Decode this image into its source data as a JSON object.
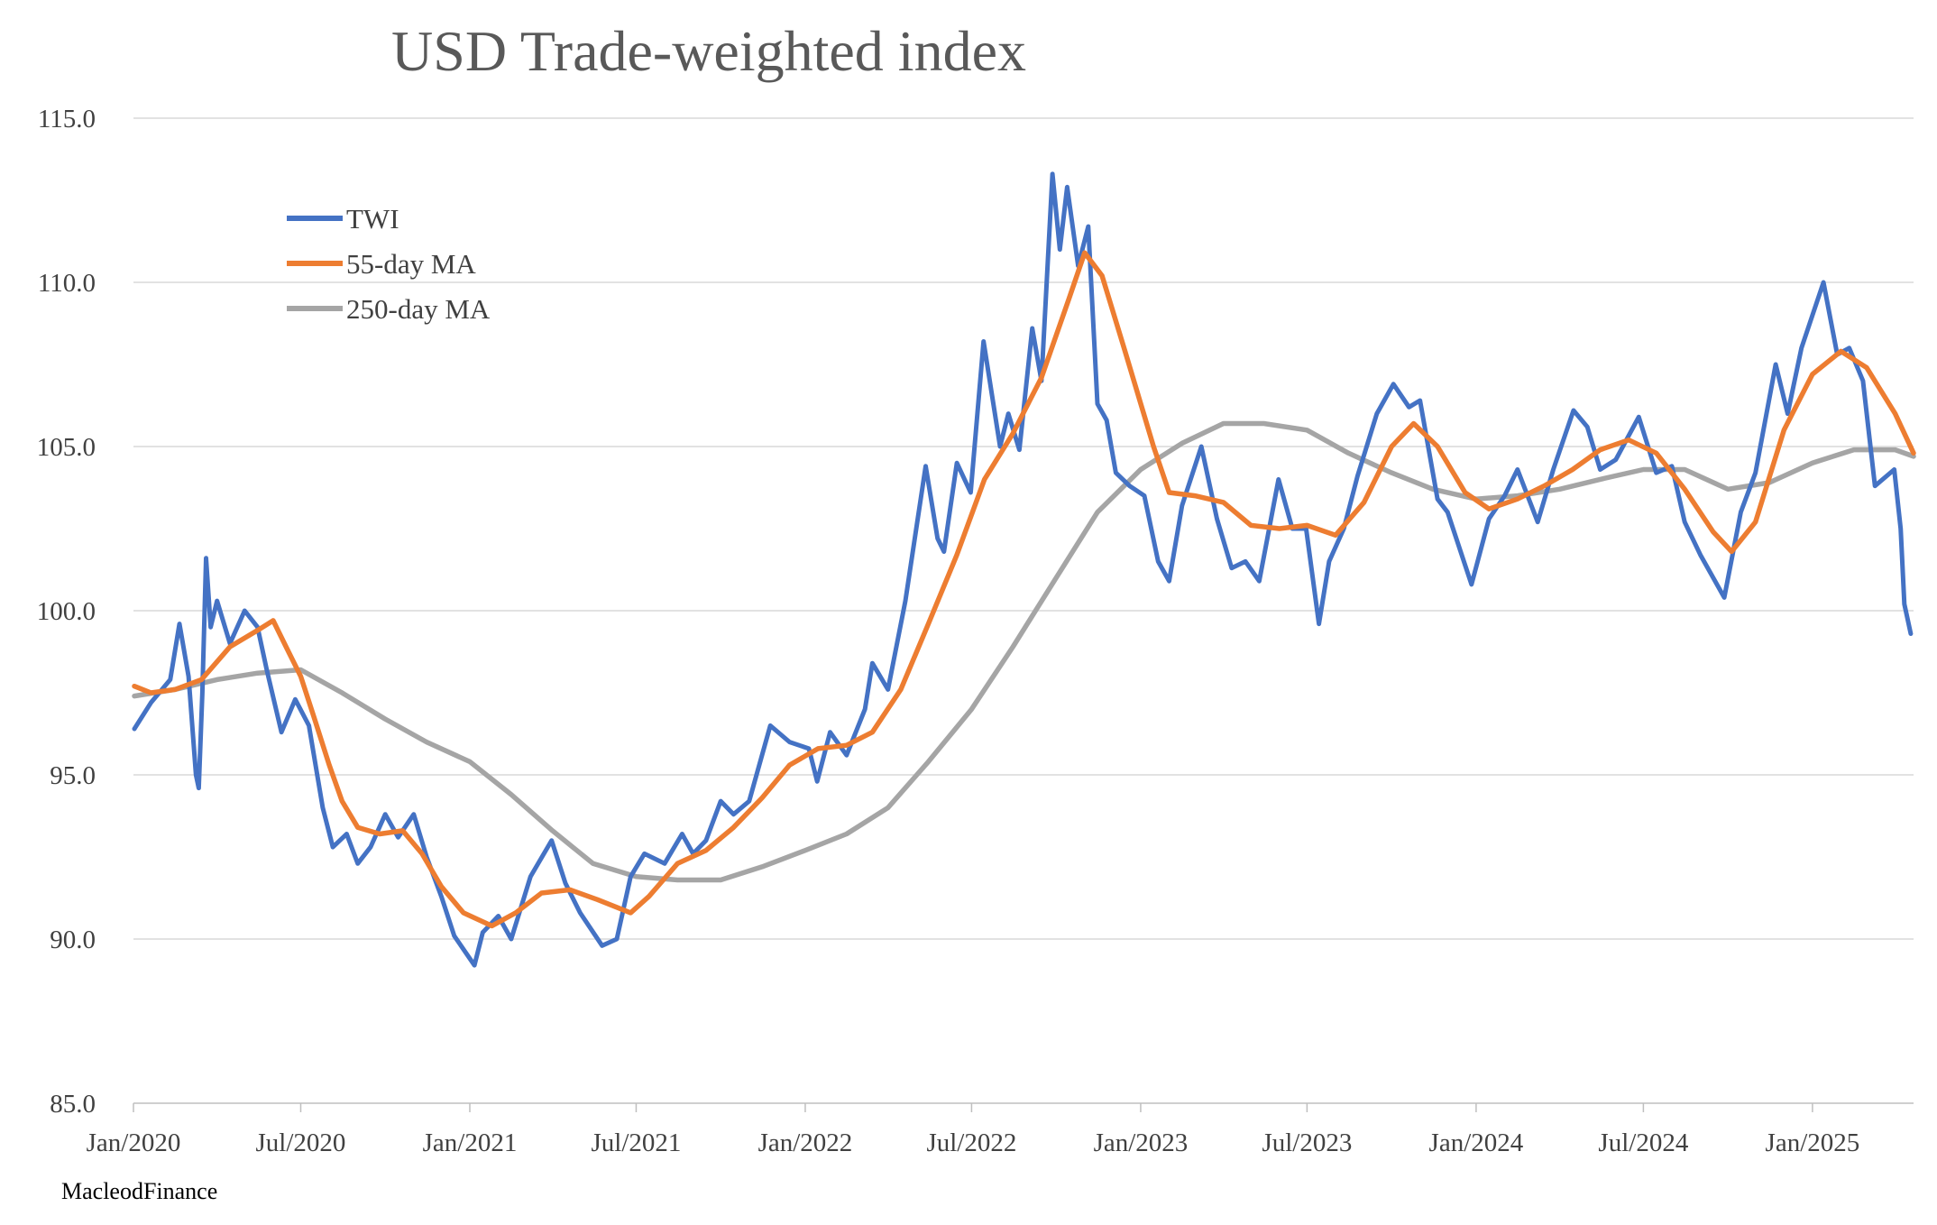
{
  "source_label": "MacleodFinance",
  "chart_data": {
    "type": "line",
    "title": "USD Trade-weighted index",
    "xlabel": "",
    "ylabel": "",
    "x_range": [
      "2020-01-01",
      "2025-04-21"
    ],
    "ylim": [
      85.0,
      115.0
    ],
    "y_ticks": [
      "85.0",
      "90.0",
      "95.0",
      "100.0",
      "105.0",
      "110.0",
      "115.0"
    ],
    "x_ticks": [
      {
        "label": "Jan/2020",
        "date": "2020-01-01"
      },
      {
        "label": "Jul/2020",
        "date": "2020-07-01"
      },
      {
        "label": "Jan/2021",
        "date": "2021-01-01"
      },
      {
        "label": "Jul/2021",
        "date": "2021-07-01"
      },
      {
        "label": "Jan/2022",
        "date": "2022-01-01"
      },
      {
        "label": "Jul/2022",
        "date": "2022-07-01"
      },
      {
        "label": "Jan/2023",
        "date": "2023-01-01"
      },
      {
        "label": "Jul/2023",
        "date": "2023-07-01"
      },
      {
        "label": "Jan/2024",
        "date": "2024-01-01"
      },
      {
        "label": "Jul/2024",
        "date": "2024-07-01"
      },
      {
        "label": "Jan/2025",
        "date": "2025-01-01"
      }
    ],
    "grid": true,
    "legend_position": "top-left",
    "series": [
      {
        "name": "TWI",
        "color": "#4472C4",
        "points": [
          [
            "2020-01-02",
            96.4
          ],
          [
            "2020-01-20",
            97.2
          ],
          [
            "2020-02-10",
            97.9
          ],
          [
            "2020-02-20",
            99.6
          ],
          [
            "2020-03-01",
            98.0
          ],
          [
            "2020-03-09",
            95.0
          ],
          [
            "2020-03-12",
            94.6
          ],
          [
            "2020-03-16",
            97.5
          ],
          [
            "2020-03-20",
            101.6
          ],
          [
            "2020-03-25",
            99.5
          ],
          [
            "2020-04-01",
            100.3
          ],
          [
            "2020-04-15",
            99.0
          ],
          [
            "2020-05-01",
            100.0
          ],
          [
            "2020-05-15",
            99.5
          ],
          [
            "2020-05-25",
            98.2
          ],
          [
            "2020-06-10",
            96.3
          ],
          [
            "2020-06-25",
            97.3
          ],
          [
            "2020-07-10",
            96.5
          ],
          [
            "2020-07-25",
            94.0
          ],
          [
            "2020-08-05",
            92.8
          ],
          [
            "2020-08-20",
            93.2
          ],
          [
            "2020-09-01",
            92.3
          ],
          [
            "2020-09-15",
            92.8
          ],
          [
            "2020-10-01",
            93.8
          ],
          [
            "2020-10-15",
            93.1
          ],
          [
            "2020-11-01",
            93.8
          ],
          [
            "2020-11-15",
            92.5
          ],
          [
            "2020-12-01",
            91.3
          ],
          [
            "2020-12-15",
            90.1
          ],
          [
            "2021-01-06",
            89.2
          ],
          [
            "2021-01-15",
            90.2
          ],
          [
            "2021-02-01",
            90.7
          ],
          [
            "2021-02-15",
            90.0
          ],
          [
            "2021-03-08",
            91.9
          ],
          [
            "2021-03-31",
            93.0
          ],
          [
            "2021-04-15",
            91.7
          ],
          [
            "2021-05-01",
            90.8
          ],
          [
            "2021-05-25",
            89.8
          ],
          [
            "2021-06-10",
            90.0
          ],
          [
            "2021-06-25",
            91.9
          ],
          [
            "2021-07-10",
            92.6
          ],
          [
            "2021-08-01",
            92.3
          ],
          [
            "2021-08-20",
            93.2
          ],
          [
            "2021-09-01",
            92.6
          ],
          [
            "2021-09-15",
            93.0
          ],
          [
            "2021-10-01",
            94.2
          ],
          [
            "2021-10-15",
            93.8
          ],
          [
            "2021-11-01",
            94.2
          ],
          [
            "2021-11-24",
            96.5
          ],
          [
            "2021-12-15",
            96.0
          ],
          [
            "2022-01-05",
            95.8
          ],
          [
            "2022-01-14",
            94.8
          ],
          [
            "2022-01-28",
            96.3
          ],
          [
            "2022-02-15",
            95.6
          ],
          [
            "2022-03-07",
            97.0
          ],
          [
            "2022-03-15",
            98.4
          ],
          [
            "2022-04-01",
            97.6
          ],
          [
            "2022-04-20",
            100.3
          ],
          [
            "2022-05-12",
            104.4
          ],
          [
            "2022-05-25",
            102.2
          ],
          [
            "2022-06-01",
            101.8
          ],
          [
            "2022-06-15",
            104.5
          ],
          [
            "2022-06-30",
            103.6
          ],
          [
            "2022-07-14",
            108.2
          ],
          [
            "2022-08-01",
            105.0
          ],
          [
            "2022-08-10",
            106.0
          ],
          [
            "2022-08-22",
            104.9
          ],
          [
            "2022-09-05",
            108.6
          ],
          [
            "2022-09-15",
            107.0
          ],
          [
            "2022-09-27",
            113.3
          ],
          [
            "2022-10-05",
            111.0
          ],
          [
            "2022-10-13",
            112.9
          ],
          [
            "2022-10-25",
            110.5
          ],
          [
            "2022-11-05",
            111.7
          ],
          [
            "2022-11-15",
            106.3
          ],
          [
            "2022-11-25",
            105.8
          ],
          [
            "2022-12-05",
            104.2
          ],
          [
            "2022-12-20",
            103.8
          ],
          [
            "2023-01-05",
            103.5
          ],
          [
            "2023-01-20",
            101.5
          ],
          [
            "2023-02-01",
            100.9
          ],
          [
            "2023-02-15",
            103.2
          ],
          [
            "2023-03-08",
            105.0
          ],
          [
            "2023-03-25",
            102.8
          ],
          [
            "2023-04-10",
            101.3
          ],
          [
            "2023-04-25",
            101.5
          ],
          [
            "2023-05-10",
            100.9
          ],
          [
            "2023-05-31",
            104.0
          ],
          [
            "2023-06-15",
            102.5
          ],
          [
            "2023-06-30",
            102.5
          ],
          [
            "2023-07-14",
            99.6
          ],
          [
            "2023-07-25",
            101.5
          ],
          [
            "2023-08-10",
            102.5
          ],
          [
            "2023-08-25",
            104.1
          ],
          [
            "2023-09-15",
            106.0
          ],
          [
            "2023-10-03",
            106.9
          ],
          [
            "2023-10-20",
            106.2
          ],
          [
            "2023-11-01",
            106.4
          ],
          [
            "2023-11-20",
            103.4
          ],
          [
            "2023-12-01",
            103.0
          ],
          [
            "2023-12-27",
            100.8
          ],
          [
            "2024-01-15",
            102.8
          ],
          [
            "2024-02-01",
            103.5
          ],
          [
            "2024-02-15",
            104.3
          ],
          [
            "2024-03-08",
            102.7
          ],
          [
            "2024-03-25",
            104.3
          ],
          [
            "2024-04-16",
            106.1
          ],
          [
            "2024-05-01",
            105.6
          ],
          [
            "2024-05-15",
            104.3
          ],
          [
            "2024-06-01",
            104.6
          ],
          [
            "2024-06-26",
            105.9
          ],
          [
            "2024-07-15",
            104.2
          ],
          [
            "2024-08-01",
            104.4
          ],
          [
            "2024-08-15",
            102.7
          ],
          [
            "2024-09-01",
            101.7
          ],
          [
            "2024-09-27",
            100.4
          ],
          [
            "2024-10-15",
            103.0
          ],
          [
            "2024-10-31",
            104.2
          ],
          [
            "2024-11-22",
            107.5
          ],
          [
            "2024-12-05",
            106.0
          ],
          [
            "2024-12-20",
            108.0
          ],
          [
            "2025-01-13",
            110.0
          ],
          [
            "2025-01-28",
            107.8
          ],
          [
            "2025-02-10",
            108.0
          ],
          [
            "2025-02-25",
            107.0
          ],
          [
            "2025-03-10",
            103.8
          ],
          [
            "2025-03-31",
            104.3
          ],
          [
            "2025-04-07",
            102.5
          ],
          [
            "2025-04-11",
            100.2
          ],
          [
            "2025-04-18",
            99.3
          ]
        ]
      },
      {
        "name": "55-day MA",
        "color": "#ED7D31",
        "points": [
          [
            "2020-01-02",
            97.7
          ],
          [
            "2020-01-20",
            97.5
          ],
          [
            "2020-02-15",
            97.6
          ],
          [
            "2020-03-15",
            97.9
          ],
          [
            "2020-04-15",
            98.9
          ],
          [
            "2020-05-15",
            99.4
          ],
          [
            "2020-06-01",
            99.7
          ],
          [
            "2020-06-15",
            98.9
          ],
          [
            "2020-07-01",
            98.0
          ],
          [
            "2020-07-15",
            96.8
          ],
          [
            "2020-08-01",
            95.3
          ],
          [
            "2020-08-15",
            94.2
          ],
          [
            "2020-09-01",
            93.4
          ],
          [
            "2020-09-25",
            93.2
          ],
          [
            "2020-10-20",
            93.3
          ],
          [
            "2020-11-10",
            92.6
          ],
          [
            "2020-12-01",
            91.6
          ],
          [
            "2020-12-25",
            90.8
          ],
          [
            "2021-01-25",
            90.4
          ],
          [
            "2021-02-20",
            90.8
          ],
          [
            "2021-03-20",
            91.4
          ],
          [
            "2021-04-20",
            91.5
          ],
          [
            "2021-05-20",
            91.2
          ],
          [
            "2021-06-25",
            90.8
          ],
          [
            "2021-07-15",
            91.3
          ],
          [
            "2021-08-15",
            92.3
          ],
          [
            "2021-09-15",
            92.7
          ],
          [
            "2021-10-15",
            93.4
          ],
          [
            "2021-11-15",
            94.3
          ],
          [
            "2021-12-15",
            95.3
          ],
          [
            "2022-01-15",
            95.8
          ],
          [
            "2022-02-15",
            95.9
          ],
          [
            "2022-03-15",
            96.3
          ],
          [
            "2022-04-15",
            97.6
          ],
          [
            "2022-05-15",
            99.6
          ],
          [
            "2022-06-15",
            101.7
          ],
          [
            "2022-07-15",
            104.0
          ],
          [
            "2022-08-15",
            105.4
          ],
          [
            "2022-09-15",
            107.1
          ],
          [
            "2022-10-15",
            109.5
          ],
          [
            "2022-11-01",
            110.9
          ],
          [
            "2022-11-20",
            110.2
          ],
          [
            "2022-12-15",
            107.9
          ],
          [
            "2023-01-15",
            105.0
          ],
          [
            "2023-02-01",
            103.6
          ],
          [
            "2023-03-01",
            103.5
          ],
          [
            "2023-04-01",
            103.3
          ],
          [
            "2023-05-01",
            102.6
          ],
          [
            "2023-06-01",
            102.5
          ],
          [
            "2023-07-01",
            102.6
          ],
          [
            "2023-08-01",
            102.3
          ],
          [
            "2023-09-01",
            103.3
          ],
          [
            "2023-10-01",
            105.0
          ],
          [
            "2023-10-25",
            105.7
          ],
          [
            "2023-11-20",
            105.0
          ],
          [
            "2023-12-20",
            103.6
          ],
          [
            "2024-01-15",
            103.1
          ],
          [
            "2024-02-15",
            103.4
          ],
          [
            "2024-03-15",
            103.8
          ],
          [
            "2024-04-15",
            104.3
          ],
          [
            "2024-05-15",
            104.9
          ],
          [
            "2024-06-15",
            105.2
          ],
          [
            "2024-07-15",
            104.8
          ],
          [
            "2024-08-15",
            103.7
          ],
          [
            "2024-09-15",
            102.4
          ],
          [
            "2024-10-05",
            101.8
          ],
          [
            "2024-10-31",
            102.7
          ],
          [
            "2024-12-01",
            105.5
          ],
          [
            "2025-01-01",
            107.2
          ],
          [
            "2025-02-01",
            107.9
          ],
          [
            "2025-03-01",
            107.4
          ],
          [
            "2025-04-01",
            106.0
          ],
          [
            "2025-04-21",
            104.8
          ]
        ]
      },
      {
        "name": "250-day MA",
        "color": "#A5A5A5",
        "points": [
          [
            "2020-01-02",
            97.4
          ],
          [
            "2020-02-15",
            97.6
          ],
          [
            "2020-04-01",
            97.9
          ],
          [
            "2020-05-15",
            98.1
          ],
          [
            "2020-07-01",
            98.2
          ],
          [
            "2020-08-15",
            97.5
          ],
          [
            "2020-10-01",
            96.7
          ],
          [
            "2020-11-15",
            96.0
          ],
          [
            "2021-01-01",
            95.4
          ],
          [
            "2021-02-15",
            94.4
          ],
          [
            "2021-04-01",
            93.3
          ],
          [
            "2021-05-15",
            92.3
          ],
          [
            "2021-07-01",
            91.9
          ],
          [
            "2021-08-15",
            91.8
          ],
          [
            "2021-10-01",
            91.8
          ],
          [
            "2021-11-15",
            92.2
          ],
          [
            "2022-01-01",
            92.7
          ],
          [
            "2022-02-15",
            93.2
          ],
          [
            "2022-04-01",
            94.0
          ],
          [
            "2022-05-15",
            95.4
          ],
          [
            "2022-07-01",
            97.0
          ],
          [
            "2022-08-15",
            98.9
          ],
          [
            "2022-10-01",
            101.0
          ],
          [
            "2022-11-15",
            103.0
          ],
          [
            "2023-01-01",
            104.3
          ],
          [
            "2023-02-15",
            105.1
          ],
          [
            "2023-04-01",
            105.7
          ],
          [
            "2023-05-15",
            105.7
          ],
          [
            "2023-07-01",
            105.5
          ],
          [
            "2023-08-15",
            104.8
          ],
          [
            "2023-10-01",
            104.2
          ],
          [
            "2023-11-15",
            103.7
          ],
          [
            "2024-01-01",
            103.4
          ],
          [
            "2024-02-15",
            103.5
          ],
          [
            "2024-04-01",
            103.7
          ],
          [
            "2024-05-15",
            104.0
          ],
          [
            "2024-07-01",
            104.3
          ],
          [
            "2024-08-15",
            104.3
          ],
          [
            "2024-10-01",
            103.7
          ],
          [
            "2024-11-15",
            103.9
          ],
          [
            "2025-01-01",
            104.5
          ],
          [
            "2025-02-15",
            104.9
          ],
          [
            "2025-04-01",
            104.9
          ],
          [
            "2025-04-21",
            104.7
          ]
        ]
      }
    ]
  }
}
